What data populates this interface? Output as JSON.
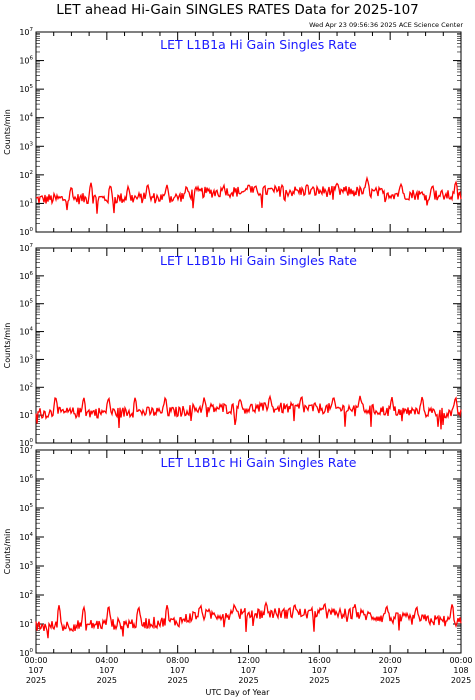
{
  "page": {
    "title": "LET ahead Hi-Gain SINGLES RATES Data for 2025-107",
    "timestamp": "Wed Apr 23 09:56:36 2025 ACE Science Center",
    "xlabel": "UTC Day of Year"
  },
  "colors": {
    "series": "#ff0000",
    "panel_title": "#1a1aff",
    "axes": "#000000"
  },
  "chart_data": [
    {
      "type": "line",
      "title": "LET L1B1a Hi Gain Singles Rate",
      "ylabel": "Counts/min",
      "yscale": "log",
      "ylim": [
        1,
        10000000
      ],
      "xlim": [
        0,
        24
      ],
      "x_unit": "hours UTC",
      "y_ticks": [
        "10^0",
        "10^1",
        "10^2",
        "10^3",
        "10^4",
        "10^5",
        "10^6",
        "10^7"
      ],
      "series": [
        {
          "baseline": [
            [
              0,
              14
            ],
            [
              8,
              16
            ],
            [
              9,
              24
            ],
            [
              13,
              27
            ],
            [
              18,
              26
            ],
            [
              20,
              22
            ],
            [
              24,
              18
            ]
          ],
          "spikes": [
            [
              2,
              40
            ],
            [
              3.1,
              55
            ],
            [
              4.2,
              45
            ],
            [
              5.2,
              40
            ],
            [
              6.3,
              50
            ],
            [
              7.4,
              45
            ],
            [
              8.5,
              40
            ],
            [
              10.6,
              45
            ],
            [
              12,
              50
            ],
            [
              13.9,
              45
            ],
            [
              15.3,
              45
            ],
            [
              17,
              50
            ],
            [
              18.7,
              80
            ],
            [
              20.6,
              50
            ],
            [
              22.4,
              45
            ],
            [
              23.7,
              60
            ]
          ]
        }
      ]
    },
    {
      "type": "line",
      "title": "LET L1B1b Hi Gain Singles Rate",
      "ylabel": "Counts/min",
      "yscale": "log",
      "ylim": [
        1,
        10000000
      ],
      "xlim": [
        0,
        24
      ],
      "x_unit": "hours UTC",
      "y_ticks": [
        "10^0",
        "10^1",
        "10^2",
        "10^3",
        "10^4",
        "10^5",
        "10^6",
        "10^7"
      ],
      "series": [
        {
          "baseline": [
            [
              0,
              12
            ],
            [
              8,
              13
            ],
            [
              9,
              17
            ],
            [
              13,
              18
            ],
            [
              18,
              17
            ],
            [
              20,
              14
            ],
            [
              24,
              12
            ]
          ],
          "spikes": [
            [
              1.1,
              50
            ],
            [
              2.7,
              45
            ],
            [
              4.1,
              45
            ],
            [
              5.6,
              45
            ],
            [
              7.3,
              45
            ],
            [
              9.5,
              45
            ],
            [
              11.5,
              40
            ],
            [
              13.2,
              50
            ],
            [
              15,
              50
            ],
            [
              16.8,
              45
            ],
            [
              18.3,
              50
            ],
            [
              20.1,
              45
            ],
            [
              21.8,
              45
            ],
            [
              23.7,
              45
            ]
          ]
        }
      ]
    },
    {
      "type": "line",
      "title": "LET L1B1c Hi Gain Singles Rate",
      "ylabel": "Counts/min",
      "yscale": "log",
      "ylim": [
        1,
        10000000
      ],
      "xlim": [
        0,
        24
      ],
      "x_unit": "hours UTC",
      "y_ticks": [
        "10^0",
        "10^1",
        "10^2",
        "10^3",
        "10^4",
        "10^5",
        "10^6",
        "10^7"
      ],
      "series": [
        {
          "baseline": [
            [
              0,
              8
            ],
            [
              8,
              12
            ],
            [
              9,
              20
            ],
            [
              13,
              24
            ],
            [
              18,
              22
            ],
            [
              20,
              16
            ],
            [
              24,
              12
            ]
          ],
          "spikes": [
            [
              1.3,
              45
            ],
            [
              2.7,
              40
            ],
            [
              4.1,
              45
            ],
            [
              5.8,
              40
            ],
            [
              7.4,
              45
            ],
            [
              9.3,
              45
            ],
            [
              11.2,
              50
            ],
            [
              13,
              55
            ],
            [
              14.6,
              50
            ],
            [
              16.3,
              55
            ],
            [
              18,
              50
            ],
            [
              19.8,
              45
            ],
            [
              21.5,
              40
            ],
            [
              23.5,
              50
            ]
          ]
        }
      ]
    }
  ],
  "x_ticks": [
    {
      "time": "00:00",
      "day": "107",
      "year": "2025",
      "hour": 0
    },
    {
      "time": "04:00",
      "day": "107",
      "year": "2025",
      "hour": 4
    },
    {
      "time": "08:00",
      "day": "107",
      "year": "2025",
      "hour": 8
    },
    {
      "time": "12:00",
      "day": "107",
      "year": "2025",
      "hour": 12
    },
    {
      "time": "16:00",
      "day": "107",
      "year": "2025",
      "hour": 16
    },
    {
      "time": "20:00",
      "day": "107",
      "year": "2025",
      "hour": 20
    },
    {
      "time": "00:00",
      "day": "108",
      "year": "2025",
      "hour": 24
    }
  ]
}
